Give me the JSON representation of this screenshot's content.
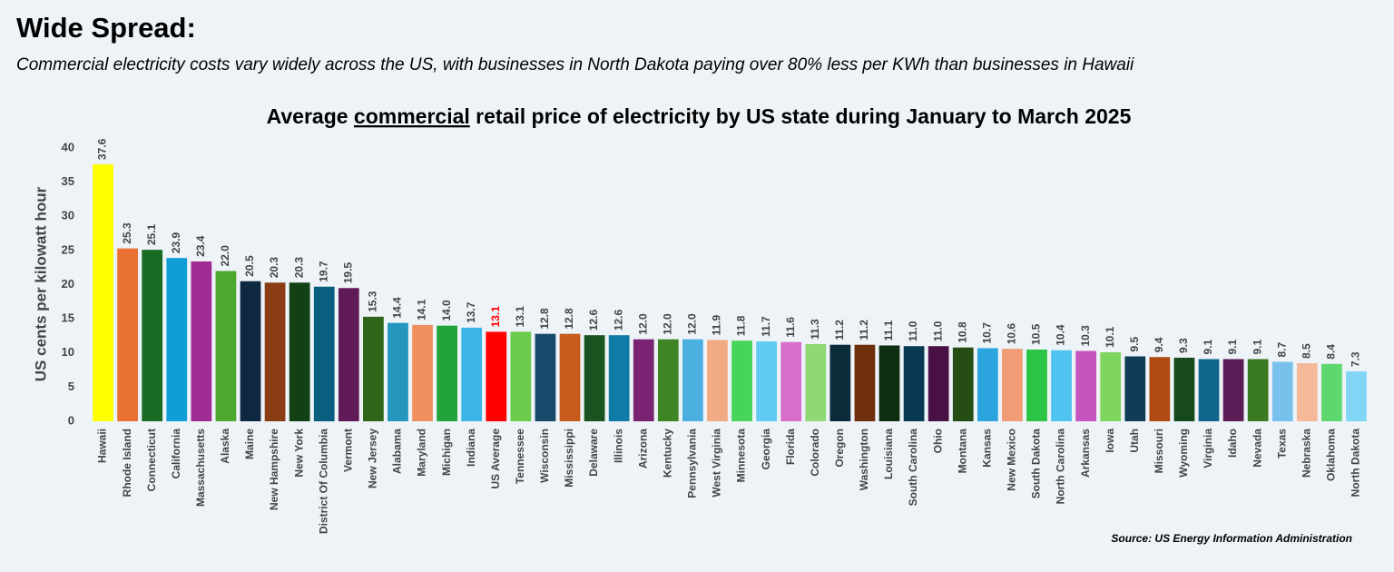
{
  "header": {
    "title": "Wide Spread:",
    "subtitle": "Commercial electricity costs vary widely across the US, with businesses in North Dakota paying over 80% less per KWh than businesses in Hawaii"
  },
  "chart_data": {
    "type": "bar",
    "title": "Average commercial retail price of electricity by US state during January to March 2025",
    "title_underline_chars": [
      8,
      18
    ],
    "y_label": "US cents per kilowatt hour",
    "source": "Source: US Energy Information Administration",
    "categories": [
      "Hawaii",
      "Rhode Island",
      "Connecticut",
      "California",
      "Massachusetts",
      "Alaska",
      "Maine",
      "New Hampshire",
      "New York",
      "District Of Columbia",
      "Vermont",
      "New Jersey",
      "Alabama",
      "Maryland",
      "Michigan",
      "Indiana",
      "US Average",
      "Tennessee",
      "Wisconsin",
      "Mississippi",
      "Delaware",
      "Illinois",
      "Arizona",
      "Kentucky",
      "Pennsylvania",
      "West Virginia",
      "Minnesota",
      "Georgia",
      "Florida",
      "Colorado",
      "Oregon",
      "Washington",
      "Louisiana",
      "South Carolina",
      "Ohio",
      "Montana",
      "Kansas",
      "New Mexico",
      "South Dakota",
      "North Carolina",
      "Arkansas",
      "Iowa",
      "Utah",
      "Missouri",
      "Wyoming",
      "Virginia",
      "Idaho",
      "Nevada",
      "Texas",
      "Nebraska",
      "Oklahoma",
      "North Dakota"
    ],
    "values": [
      37.6,
      25.3,
      25.1,
      23.9,
      23.4,
      22.0,
      20.5,
      20.3,
      20.3,
      19.7,
      19.5,
      15.3,
      14.4,
      14.1,
      14.0,
      13.7,
      13.1,
      13.1,
      12.8,
      12.8,
      12.6,
      12.6,
      12.0,
      12.0,
      12.0,
      11.9,
      11.8,
      11.7,
      11.6,
      11.3,
      11.2,
      11.2,
      11.1,
      11.0,
      11.0,
      10.8,
      10.7,
      10.6,
      10.5,
      10.4,
      10.3,
      10.1,
      9.5,
      9.4,
      9.3,
      9.1,
      9.1,
      9.1,
      8.7,
      8.5,
      8.4,
      7.3
    ],
    "value_labels": [
      "37.6",
      "25.3",
      "25.1",
      "23.9",
      "23.4",
      "22.0",
      "20.5",
      "20.3",
      "20.3",
      "19.7",
      "19.5",
      "15.3",
      "14.4",
      "14.1",
      "14.0",
      "13.7",
      "13.1",
      "13.1",
      "12.8",
      "12.8",
      "12.6",
      "12.6",
      "12.0",
      "12.0",
      "12.0",
      "11.9",
      "11.8",
      "11.7",
      "11.6",
      "11.3",
      "11.2",
      "11.2",
      "11.1",
      "11.0",
      "11.0",
      "10.8",
      "10.7",
      "10.6",
      "10.5",
      "10.4",
      "10.3",
      "10.1",
      "9.5",
      "9.4",
      "9.3",
      "9.1",
      "9.1",
      "9.1",
      "8.7",
      "8.5",
      "8.4",
      "7.3"
    ],
    "colors": [
      "#ffff00",
      "#e97132",
      "#196b24",
      "#0f9ed5",
      "#a02b93",
      "#4ea72e",
      "#0e2841",
      "#8a3d14",
      "#124116",
      "#0a5f80",
      "#601a58",
      "#2f6519",
      "#2596be",
      "#f0905e",
      "#23a43b",
      "#3bb5e8",
      "#ff0000",
      "#6ccb4c",
      "#164a6b",
      "#c85a1c",
      "#1a5220",
      "#0f7ba6",
      "#7a2372",
      "#3e8526",
      "#4bb0e0",
      "#f2aa84",
      "#47d45a",
      "#61cbf3",
      "#d86ecc",
      "#8ed973",
      "#0b2a3a",
      "#70300e",
      "#0e2e12",
      "#083a54",
      "#4a1244",
      "#264d14",
      "#2ba3dc",
      "#f19c74",
      "#2ac544",
      "#4fc4f0",
      "#c655c0",
      "#7fd65e",
      "#103c58",
      "#b04a14",
      "#164a1c",
      "#0e668d",
      "#5c1c55",
      "#3a7a22",
      "#78c1ec",
      "#f5b99a",
      "#5ed86e",
      "#82d6f5"
    ],
    "highlight_label_color": "#ff0000",
    "highlight_index": 16,
    "ylim": [
      0,
      40
    ],
    "yticks": [
      0,
      5,
      10,
      15,
      20,
      25,
      30,
      35,
      40
    ],
    "grid": false
  }
}
